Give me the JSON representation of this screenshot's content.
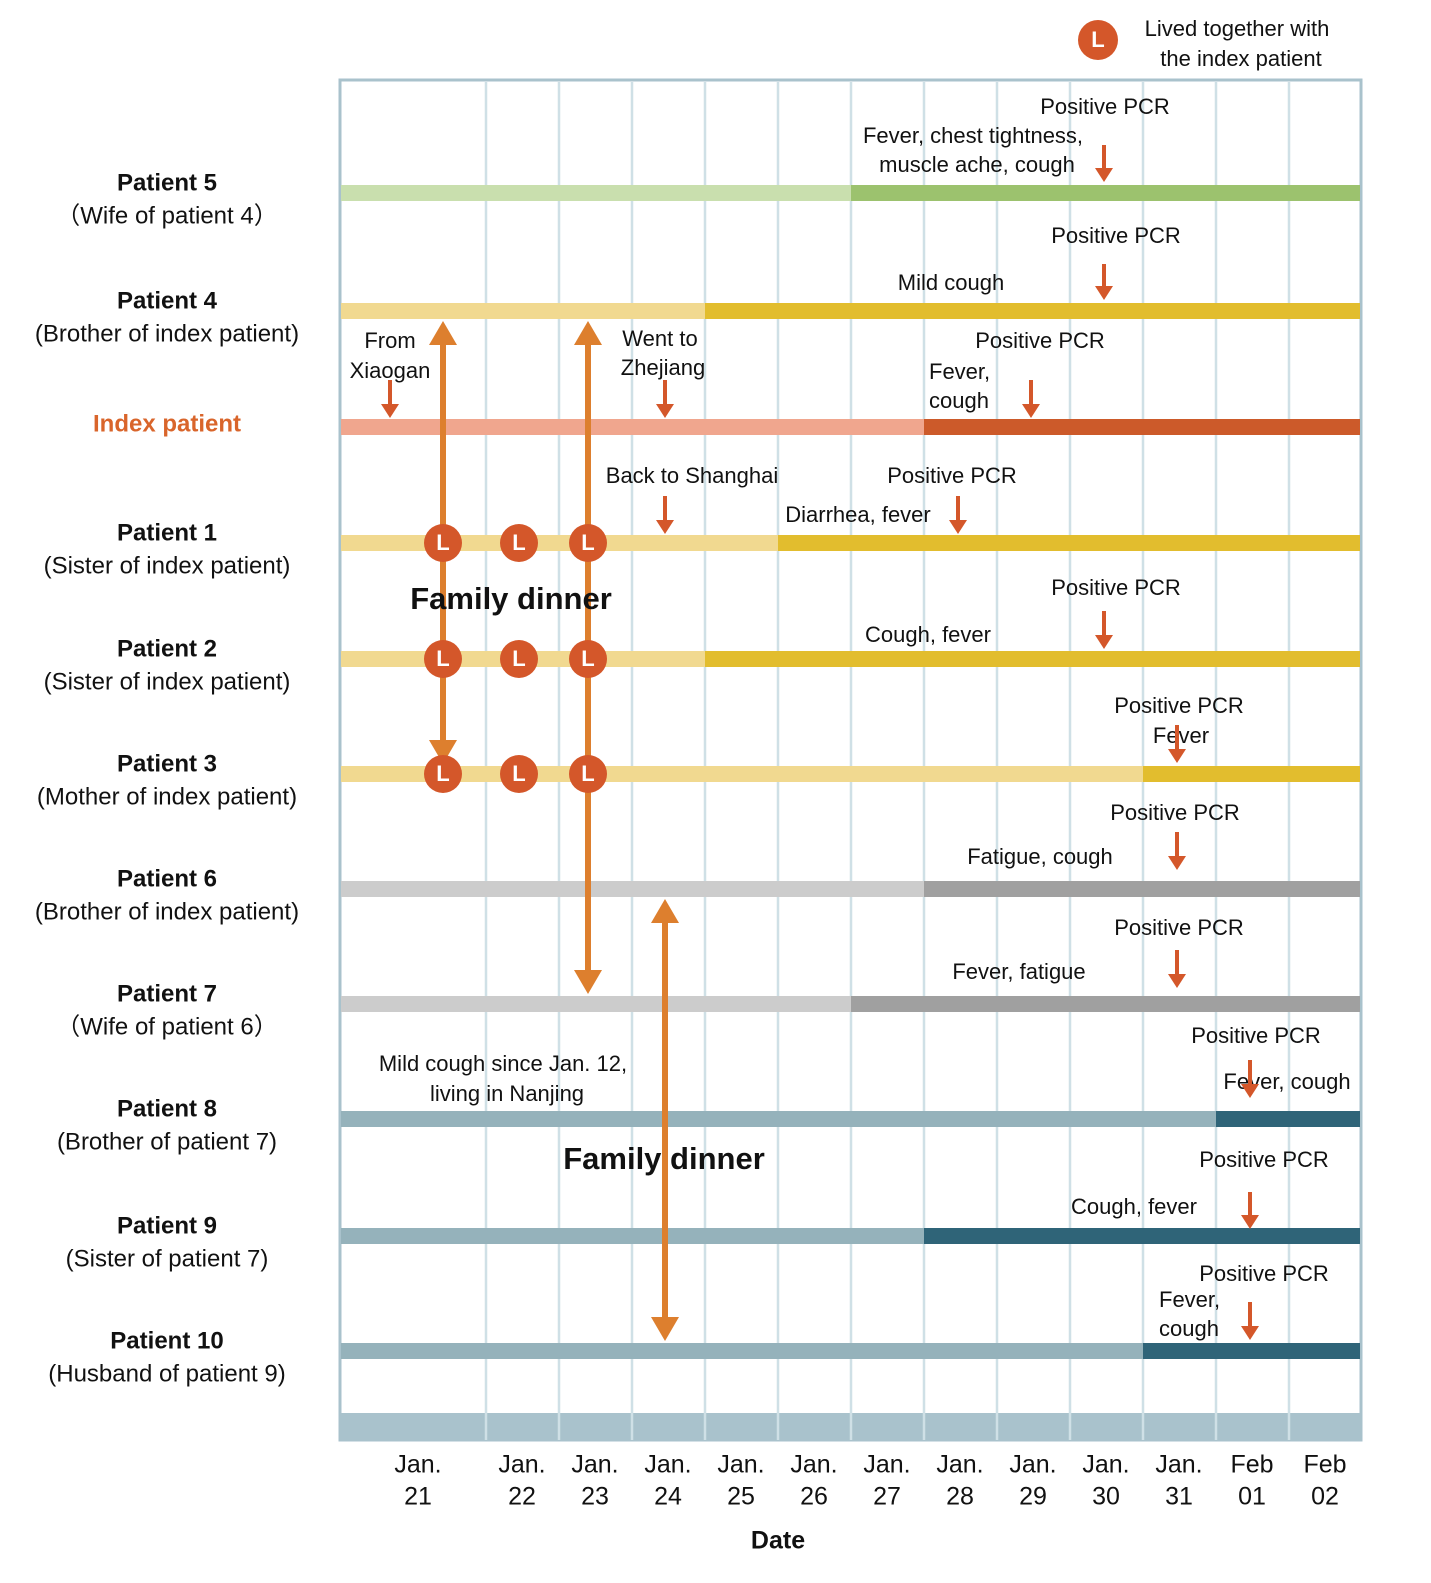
{
  "legend": {
    "marker_letter": "L",
    "lines": [
      "Lived together with",
      "the index patient"
    ]
  },
  "axis": {
    "title": "Date",
    "ticks": [
      [
        "Jan.",
        "21"
      ],
      [
        "Jan.",
        "22"
      ],
      [
        "Jan.",
        "23"
      ],
      [
        "Jan.",
        "24"
      ],
      [
        "Jan.",
        "25"
      ],
      [
        "Jan.",
        "26"
      ],
      [
        "Jan.",
        "27"
      ],
      [
        "Jan.",
        "28"
      ],
      [
        "Jan.",
        "29"
      ],
      [
        "Jan.",
        "30"
      ],
      [
        "Jan.",
        "31"
      ],
      [
        "Feb",
        "01"
      ],
      [
        "Feb",
        "02"
      ]
    ]
  },
  "colors": {
    "arrow_small": "#d4572a",
    "arrow_contact": "#dd7f2e",
    "marker": "#d4572a",
    "grid": "#cfe0e6",
    "frame": "#a9c2cc",
    "index_label": "#d9652b"
  },
  "rows": [
    {
      "id": "p5",
      "name": "Patient 5",
      "relation": "（Wife of patient 4）",
      "onset": "Jan. 27",
      "pcr_date": "Jan. 30",
      "pcr_label": "Positive PCR",
      "symptoms": [
        "Fever, chest tightness,",
        "muscle ache, cough"
      ],
      "color_before": "#c9dfae",
      "color_after": "#9cc26e"
    },
    {
      "id": "p4",
      "name": "Patient 4",
      "relation": "(Brother of index patient)",
      "onset": "Jan. 25",
      "pcr_date": "Jan. 30",
      "pcr_label": "Positive PCR",
      "symptoms": [
        "Mild cough"
      ],
      "color_before": "#f1d990",
      "color_after": "#e2bd2e"
    },
    {
      "id": "index",
      "name": "Index patient",
      "relation": "",
      "onset": "Jan. 28",
      "pcr_date": "Jan. 29",
      "pcr_label": "Positive PCR",
      "symptoms": [
        "Fever,",
        "cough"
      ],
      "color_before": "#f0a68e",
      "color_after": "#cc5a2a"
    },
    {
      "id": "p1",
      "name": "Patient 1",
      "relation": "(Sister of index patient)",
      "onset": "Jan. 26",
      "pcr_date": "Jan. 28",
      "pcr_label": "Positive PCR",
      "symptoms": [
        "Diarrhea, fever"
      ],
      "color_before": "#f1d990",
      "color_after": "#e2bd2e"
    },
    {
      "id": "p2",
      "name": "Patient 2",
      "relation": "(Sister of index patient)",
      "onset": "Jan. 25",
      "pcr_date": "Jan. 30",
      "pcr_label": "Positive PCR",
      "symptoms": [
        "Cough, fever"
      ],
      "color_before": "#f1d990",
      "color_after": "#e2bd2e"
    },
    {
      "id": "p3",
      "name": "Patient 3",
      "relation": "(Mother of index patient)",
      "onset": "Jan. 31",
      "pcr_date": "Jan. 31",
      "pcr_label": "Positive PCR",
      "symptoms": [
        "Fever"
      ],
      "color_before": "#f1d990",
      "color_after": "#e2bd2e"
    },
    {
      "id": "p6",
      "name": "Patient 6",
      "relation": "(Brother of index patient)",
      "onset": "Jan. 28",
      "pcr_date": "Jan. 31",
      "pcr_label": "Positive PCR",
      "symptoms": [
        "Fatigue, cough"
      ],
      "color_before": "#cccccc",
      "color_after": "#a0a0a0"
    },
    {
      "id": "p7",
      "name": "Patient 7",
      "relation": "（Wife of patient 6）",
      "onset": "Jan. 27",
      "pcr_date": "Jan. 31",
      "pcr_label": "Positive PCR",
      "symptoms": [
        "Fever, fatigue"
      ],
      "color_before": "#cccccc",
      "color_after": "#a0a0a0"
    },
    {
      "id": "p8",
      "name": "Patient 8",
      "relation": "(Brother of patient 7)",
      "onset": "Feb 01",
      "pcr_date": "Feb 01",
      "pcr_label": "Positive PCR",
      "symptoms": [
        "Fever, cough"
      ],
      "color_before": "#95b2bb",
      "color_after": "#2f6478"
    },
    {
      "id": "p9",
      "name": "Patient 9",
      "relation": "(Sister of patient 7)",
      "onset": "Jan. 28",
      "pcr_date": "Feb 01",
      "pcr_label": "Positive PCR",
      "symptoms": [
        "Cough, fever"
      ],
      "color_before": "#95b2bb",
      "color_after": "#2f6478"
    },
    {
      "id": "p10",
      "name": "Patient 10",
      "relation": "(Husband of patient 9)",
      "onset": "Jan. 31",
      "pcr_date": "Feb 01",
      "pcr_label": "Positive PCR",
      "symptoms": [
        "Fever,",
        "cough"
      ],
      "color_before": "#95b2bb",
      "color_after": "#2f6478"
    }
  ],
  "events": [
    {
      "id": "from_xiaogan",
      "row": "index",
      "lines": [
        "From",
        "Xiaogan"
      ]
    },
    {
      "id": "went_to_zhejiang",
      "row": "index",
      "date": "Jan. 24",
      "lines": [
        "Went to",
        "Zhejiang"
      ]
    },
    {
      "id": "back_to_shanghai",
      "row": "p1",
      "date": "Jan. 24",
      "lines": [
        "Back to Shanghai"
      ]
    },
    {
      "id": "p8_history",
      "row": "p8",
      "lines": [
        "Mild cough since Jan. 12,",
        "living in Nanjing"
      ]
    }
  ],
  "family_dinners": [
    {
      "label": "Family dinner",
      "contacts": [
        {
          "date": "Jan. 21",
          "from": "p4",
          "to": "p3"
        },
        {
          "date": "Jan. 23",
          "from": "p4",
          "to": "p7"
        }
      ]
    },
    {
      "label": "Family dinner",
      "contacts": [
        {
          "date": "Jan. 24",
          "from": "p6",
          "to": "p10"
        }
      ]
    }
  ],
  "lived_together": {
    "rows": [
      "p1",
      "p2",
      "p3"
    ],
    "dates": [
      "Jan. 21",
      "Jan. 22",
      "Jan. 23"
    ]
  }
}
